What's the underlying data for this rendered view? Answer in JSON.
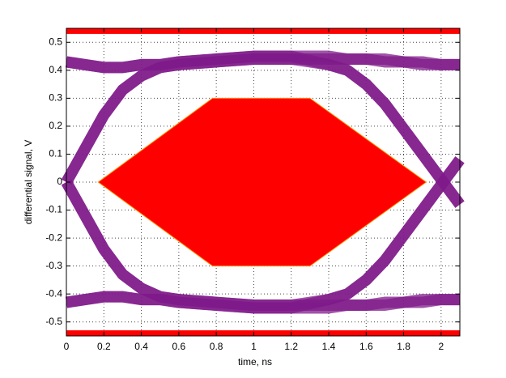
{
  "chart_data": {
    "type": "eye",
    "xlabel": "time, ns",
    "ylabel": "differential signal, V",
    "xlim": [
      0,
      2.1
    ],
    "ylim": [
      -0.55,
      0.55
    ],
    "xticks": [
      0,
      0.2,
      0.4,
      0.6,
      0.8,
      1,
      1.2,
      1.4,
      1.6,
      1.8,
      2
    ],
    "yticks": [
      -0.5,
      -0.4,
      -0.3,
      -0.2,
      -0.1,
      0,
      0.1,
      0.2,
      0.3,
      0.4,
      0.5
    ],
    "grid": true,
    "trace_color": "#7f1a8a",
    "mask_color": "#ff0000",
    "x": [
      0,
      0.1,
      0.2,
      0.3,
      0.4,
      0.5,
      0.6,
      0.8,
      1.0,
      1.2,
      1.4,
      1.5,
      1.6,
      1.7,
      1.8,
      1.9,
      2.0,
      2.1
    ],
    "traces": [
      {
        "values": [
          0.43,
          0.42,
          0.41,
          0.41,
          0.42,
          0.42,
          0.43,
          0.44,
          0.45,
          0.45,
          0.45,
          0.44,
          0.44,
          0.44,
          0.43,
          0.43,
          0.42,
          0.42
        ]
      },
      {
        "values": [
          -0.43,
          -0.42,
          -0.41,
          -0.41,
          -0.42,
          -0.42,
          -0.43,
          -0.44,
          -0.45,
          -0.45,
          -0.45,
          -0.44,
          -0.44,
          -0.44,
          -0.43,
          -0.43,
          -0.42,
          -0.42
        ]
      },
      {
        "values": [
          0.0,
          0.12,
          0.24,
          0.33,
          0.38,
          0.41,
          0.42,
          0.43,
          0.44,
          0.44,
          0.42,
          0.4,
          0.35,
          0.28,
          0.19,
          0.1,
          0.01,
          -0.08
        ]
      },
      {
        "values": [
          0.0,
          -0.12,
          -0.24,
          -0.33,
          -0.38,
          -0.41,
          -0.42,
          -0.43,
          -0.44,
          -0.44,
          -0.42,
          -0.4,
          -0.35,
          -0.28,
          -0.19,
          -0.1,
          -0.01,
          0.08
        ]
      },
      {
        "values": [
          0.0,
          0.12,
          0.24,
          0.33,
          0.38,
          0.41,
          0.42,
          0.43,
          0.44,
          0.44,
          0.44,
          0.44,
          0.44,
          0.43,
          0.43,
          0.42,
          0.42,
          0.42
        ]
      },
      {
        "values": [
          0.0,
          -0.12,
          -0.24,
          -0.33,
          -0.38,
          -0.41,
          -0.42,
          -0.43,
          -0.44,
          -0.44,
          -0.44,
          -0.44,
          -0.44,
          -0.43,
          -0.43,
          -0.42,
          -0.42,
          -0.42
        ]
      },
      {
        "values": [
          0.43,
          0.42,
          0.41,
          0.41,
          0.42,
          0.42,
          0.43,
          0.44,
          0.45,
          0.45,
          0.42,
          0.4,
          0.35,
          0.28,
          0.19,
          0.1,
          0.01,
          -0.08
        ]
      },
      {
        "values": [
          -0.43,
          -0.42,
          -0.41,
          -0.41,
          -0.42,
          -0.42,
          -0.43,
          -0.44,
          -0.45,
          -0.45,
          -0.42,
          -0.4,
          -0.35,
          -0.28,
          -0.19,
          -0.1,
          -0.01,
          0.08
        ]
      }
    ],
    "mask": {
      "x": [
        0.17,
        0.78,
        1.3,
        1.92,
        1.3,
        0.78
      ],
      "y": [
        0,
        0.3,
        0.3,
        0,
        -0.3,
        -0.3
      ]
    },
    "mask_bands": [
      [
        0.53,
        0.55
      ],
      [
        -0.55,
        -0.53
      ]
    ]
  }
}
